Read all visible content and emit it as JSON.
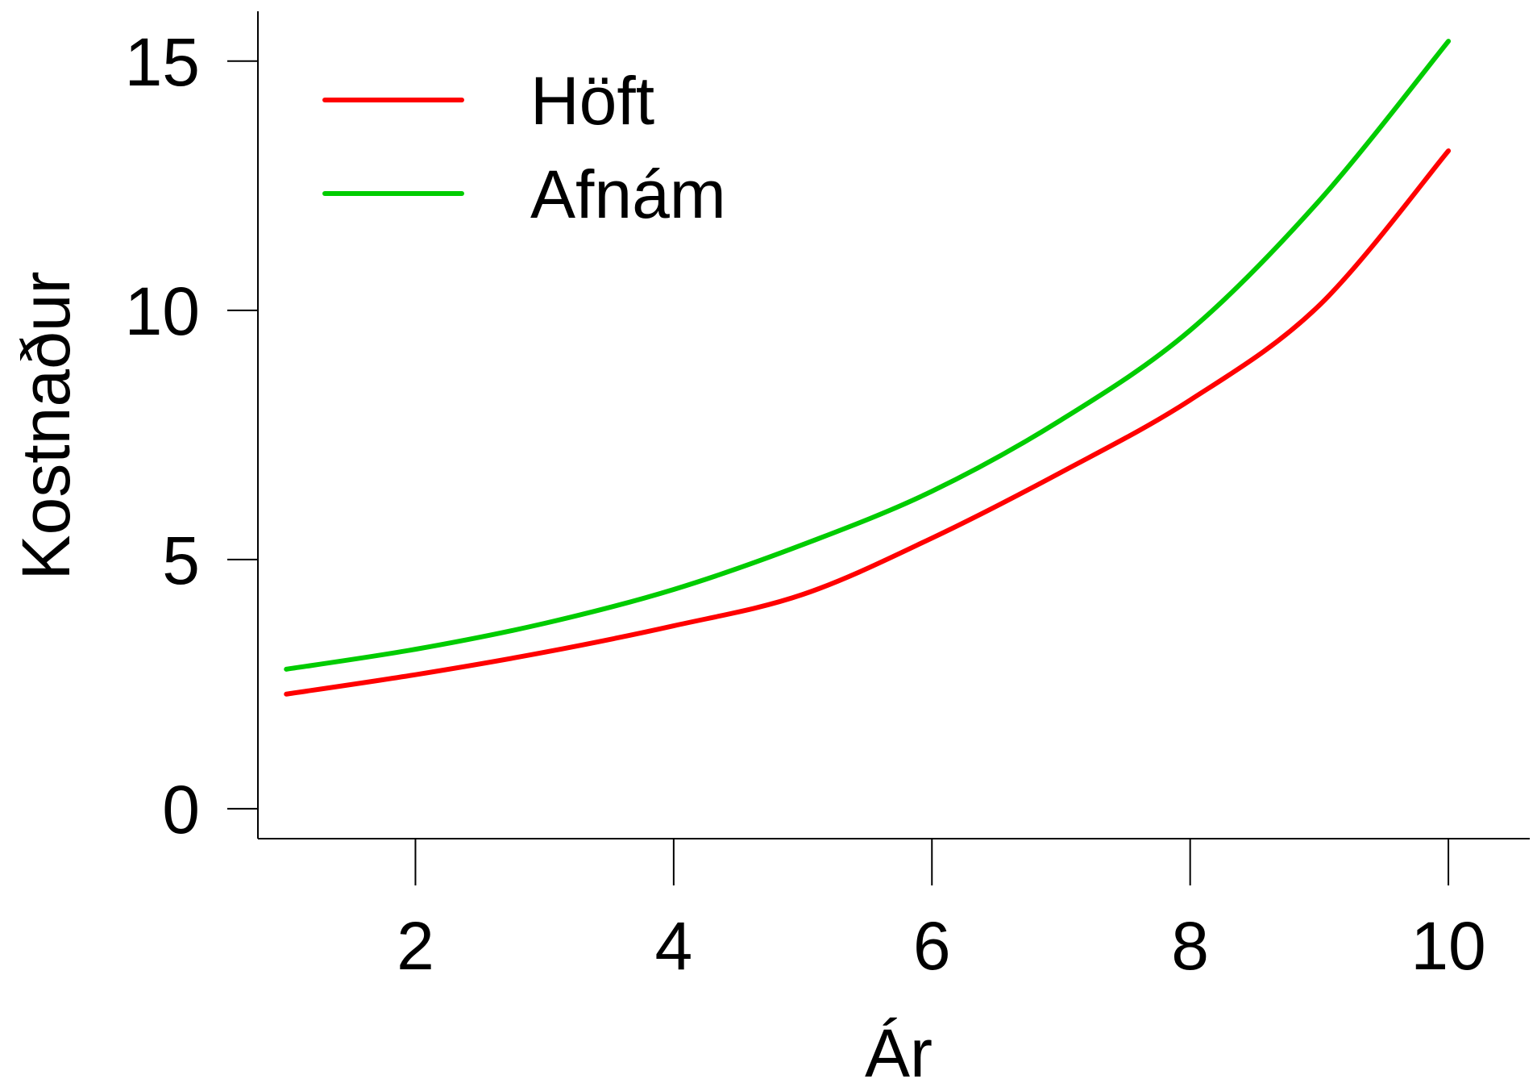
{
  "chart_data": {
    "type": "line",
    "title": "",
    "xlabel": "Ár",
    "ylabel": "Kostnaður",
    "xlim": [
      0.78,
      10.63
    ],
    "ylim": [
      -0.6,
      16.0
    ],
    "xticks": [
      2,
      4,
      6,
      8,
      10
    ],
    "xtick_labels": [
      "2",
      "4",
      "6",
      "8",
      "10"
    ],
    "yticks": [
      0,
      5,
      10,
      15
    ],
    "ytick_labels": [
      "0",
      "5",
      "10",
      "15"
    ],
    "grid": false,
    "legend_position": "top-left",
    "x": [
      1,
      2,
      3,
      4,
      5,
      6,
      7,
      8,
      9,
      10
    ],
    "series": [
      {
        "name": "Höft",
        "color": "#ff0000",
        "values": [
          2.3,
          2.69,
          3.14,
          3.67,
          4.3,
          5.43,
          6.75,
          8.2,
          10.1,
          13.2
        ]
      },
      {
        "name": "Afnám",
        "color": "#00cc00",
        "values": [
          2.8,
          3.2,
          3.72,
          4.4,
          5.3,
          6.37,
          7.8,
          9.6,
          12.2,
          15.4
        ]
      }
    ]
  }
}
